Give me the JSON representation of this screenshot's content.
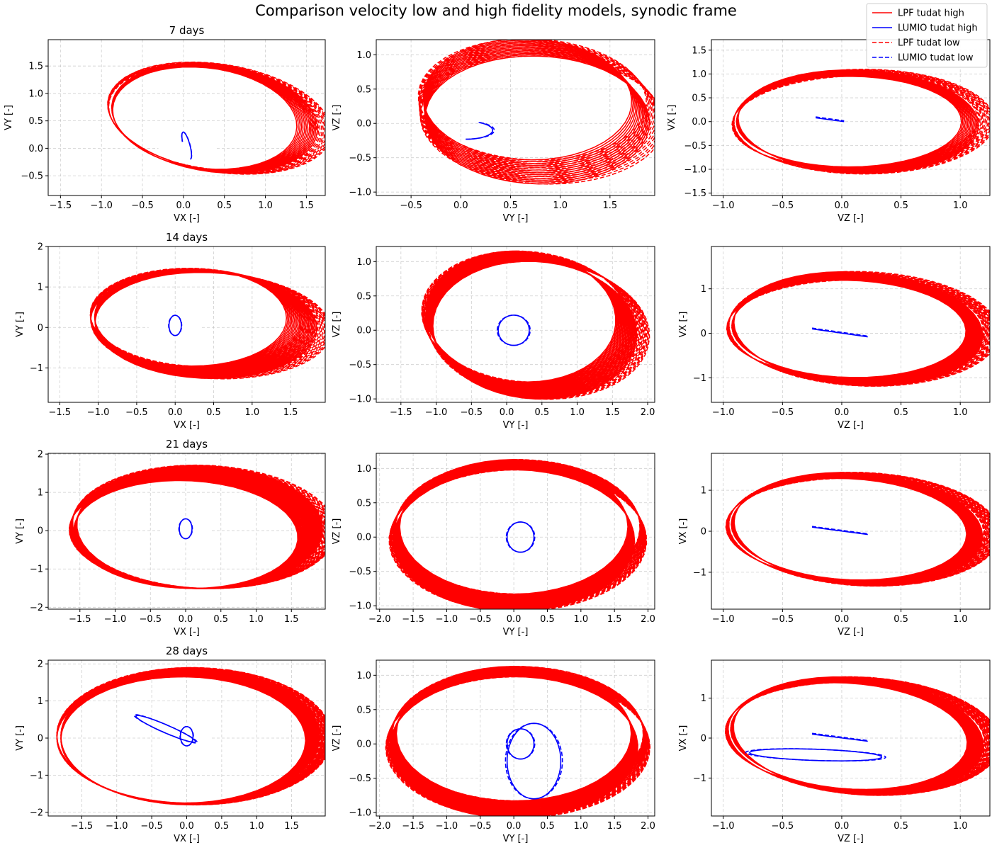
{
  "figure": {
    "title": "Comparison velocity low and high fidelity models, synodic frame"
  },
  "colors": {
    "lpf": "#ff0000",
    "lumio": "#0000ff",
    "grid": "#b0b0b0"
  },
  "legend": {
    "placement": "top-right",
    "entries": [
      {
        "label": "LPF tudat high",
        "series": "lpf",
        "style": "solid"
      },
      {
        "label": "LUMIO tudat high",
        "series": "lumio",
        "style": "solid"
      },
      {
        "label": "LPF tudat low",
        "series": "lpf",
        "style": "dashed"
      },
      {
        "label": "LUMIO tudat low",
        "series": "lumio",
        "style": "dashed"
      }
    ]
  },
  "chart_data": [
    {
      "type": "line",
      "title": "7 days",
      "xlabel": "VX [-]",
      "ylabel": "VY [-]",
      "grid": true,
      "xlim": [
        -1.65,
        1.73
      ],
      "ylim": [
        -0.86,
        1.98
      ],
      "xticks": [
        -1.5,
        -1.0,
        -0.5,
        0.0,
        0.5,
        1.0,
        1.5
      ],
      "xtick_labels": [
        "−1.5",
        "−1.0",
        "−0.5",
        "0.0",
        "0.5",
        "1.0",
        "1.5"
      ],
      "yticks": [
        -0.5,
        0.0,
        0.5,
        1.0,
        1.5
      ],
      "ytick_labels": [
        "−0.5",
        "0.0",
        "0.5",
        "1.0",
        "1.5"
      ],
      "lpf": {
        "cx": 0.32,
        "cy": 0.55,
        "ax": 1.15,
        "ay": 0.9,
        "cx_drift": 0.06,
        "cy_drift": 0.0,
        "ax_drift": 0.14,
        "ay_drift": 0.06,
        "tilt_deg": -20,
        "loops": 14,
        "low_offset": 0.12
      },
      "lumio": {
        "type": "loop",
        "cx": 0.04,
        "cy": 0.05,
        "rx": 0.04,
        "ry": 0.25,
        "tilt_deg": 10,
        "turns": 0.7
      }
    },
    {
      "type": "line",
      "title": "",
      "xlabel": "VY [-]",
      "ylabel": "VZ [-]",
      "grid": true,
      "xlim": [
        -0.85,
        1.95
      ],
      "ylim": [
        -1.05,
        1.22
      ],
      "xticks": [
        -0.5,
        0.0,
        0.5,
        1.0,
        1.5
      ],
      "xtick_labels": [
        "−0.5",
        "0.0",
        "0.5",
        "1.0",
        "1.5"
      ],
      "yticks": [
        -1.0,
        -0.5,
        0.0,
        0.5,
        1.0
      ],
      "ytick_labels": [
        "−1.0",
        "−0.5",
        "0.0",
        "0.5",
        "1.0"
      ],
      "lpf": {
        "cx": 0.72,
        "cy": 0.2,
        "ax": 1.05,
        "ay": 0.88,
        "cx_drift": 0.05,
        "cy_drift": -0.15,
        "ax_drift": 0.08,
        "ay_drift": 0.05,
        "tilt_deg": -6,
        "loops": 14,
        "low_offset": 0.1
      },
      "lumio": {
        "type": "arc",
        "cx": 0.05,
        "cy": -0.1,
        "rx": 0.27,
        "ry": 0.13,
        "tilt_deg": 0,
        "turns": 0.42
      }
    },
    {
      "type": "line",
      "title": "",
      "xlabel": "VZ [-]",
      "ylabel": "VX [-]",
      "grid": true,
      "xlim": [
        -1.1,
        1.25
      ],
      "ylim": [
        -1.55,
        1.72
      ],
      "xticks": [
        -1.0,
        -0.5,
        0.0,
        0.5,
        1.0
      ],
      "xtick_labels": [
        "−1.0",
        "−0.5",
        "0.0",
        "0.5",
        "1.0"
      ],
      "yticks": [
        -1.5,
        -1.0,
        -0.5,
        0.0,
        0.5,
        1.0,
        1.5
      ],
      "ytick_labels": [
        "−1.5",
        "−1.0",
        "−0.5",
        "0.0",
        "0.5",
        "1.0",
        "1.5"
      ],
      "lpf": {
        "cx": 0.1,
        "cy": 0.0,
        "ax": 0.95,
        "ay": 0.95,
        "cx_drift": 0.04,
        "cy_drift": 0.0,
        "ax_drift": 0.05,
        "ay_drift": 0.15,
        "tilt_deg": 22,
        "loops": 14,
        "low_offset": 0.1
      },
      "lumio": {
        "type": "line",
        "x1": -0.22,
        "y1": 0.08,
        "x2": 0.02,
        "y2": 0.0
      }
    },
    {
      "type": "line",
      "title": "14 days",
      "xlabel": "VX [-]",
      "ylabel": "VY [-]",
      "grid": true,
      "xlim": [
        -1.65,
        1.95
      ],
      "ylim": [
        -1.85,
        2.0
      ],
      "xticks": [
        -1.5,
        -1.0,
        -0.5,
        0.0,
        0.5,
        1.0,
        1.5
      ],
      "xtick_labels": [
        "−1.5",
        "−1.0",
        "−0.5",
        "0.0",
        "0.5",
        "1.0",
        "1.5"
      ],
      "yticks": [
        -1,
        0,
        1,
        2
      ],
      "ytick_labels": [
        "−1",
        "0",
        "1",
        "2"
      ],
      "lpf": {
        "cx": 0.3,
        "cy": 0.15,
        "ax": 1.25,
        "ay": 1.2,
        "cx_drift": 0.1,
        "cy_drift": -0.1,
        "ax_drift": 0.2,
        "ay_drift": 0.1,
        "tilt_deg": -15,
        "loops": 24,
        "low_offset": 0.13
      },
      "lumio": {
        "type": "loop",
        "cx": 0.0,
        "cy": 0.05,
        "rx": 0.08,
        "ry": 0.25,
        "tilt_deg": 0,
        "turns": 1
      }
    },
    {
      "type": "line",
      "title": "",
      "xlabel": "VY [-]",
      "ylabel": "VZ [-]",
      "grid": true,
      "xlim": [
        -1.85,
        2.1
      ],
      "ylim": [
        -1.05,
        1.22
      ],
      "xticks": [
        -1.5,
        -1.0,
        -0.5,
        0.0,
        0.5,
        1.0,
        1.5,
        2.0
      ],
      "xtick_labels": [
        "−1.5",
        "−1.0",
        "−0.5",
        "0.0",
        "0.5",
        "1.0",
        "1.5",
        "2.0"
      ],
      "yticks": [
        -1.0,
        -0.5,
        0.0,
        0.5,
        1.0
      ],
      "ytick_labels": [
        "−1.0",
        "−0.5",
        "0.0",
        "0.5",
        "1.0"
      ],
      "lpf": {
        "cx": 0.3,
        "cy": 0.1,
        "ax": 1.35,
        "ay": 0.95,
        "cx_drift": 0.1,
        "cy_drift": -0.1,
        "ax_drift": 0.1,
        "ay_drift": 0.05,
        "tilt_deg": -5,
        "loops": 24,
        "low_offset": 0.12
      },
      "lumio": {
        "type": "loop",
        "cx": 0.1,
        "cy": 0.0,
        "rx": 0.22,
        "ry": 0.22,
        "tilt_deg": 0,
        "turns": 1
      }
    },
    {
      "type": "line",
      "title": "",
      "xlabel": "VZ [-]",
      "ylabel": "VX [-]",
      "grid": true,
      "xlim": [
        -1.1,
        1.25
      ],
      "ylim": [
        -1.55,
        1.95
      ],
      "xticks": [
        -1.0,
        -0.5,
        0.0,
        0.5,
        1.0
      ],
      "xtick_labels": [
        "−1.0",
        "−0.5",
        "0.0",
        "0.5",
        "1.0"
      ],
      "yticks": [
        -1,
        0,
        1
      ],
      "ytick_labels": [
        "−1",
        "0",
        "1"
      ],
      "lpf": {
        "cx": 0.1,
        "cy": 0.1,
        "ax": 0.98,
        "ay": 1.1,
        "cx_drift": 0.04,
        "cy_drift": 0.0,
        "ax_drift": 0.05,
        "ay_drift": 0.2,
        "tilt_deg": 15,
        "loops": 24,
        "low_offset": 0.1
      },
      "lumio": {
        "type": "line",
        "x1": -0.25,
        "y1": 0.1,
        "x2": 0.22,
        "y2": -0.08
      }
    },
    {
      "type": "line",
      "title": "21 days",
      "xlabel": "VX [-]",
      "ylabel": "VY [-]",
      "grid": true,
      "xlim": [
        -1.95,
        1.98
      ],
      "ylim": [
        -2.05,
        2.02
      ],
      "xticks": [
        -1.5,
        -1.0,
        -0.5,
        0.0,
        0.5,
        1.0,
        1.5
      ],
      "xtick_labels": [
        "−1.5",
        "−1.0",
        "−0.5",
        "0.0",
        "0.5",
        "1.0",
        "1.5"
      ],
      "yticks": [
        -2,
        -1,
        0,
        1,
        2
      ],
      "ytick_labels": [
        "−2",
        "−1",
        "0",
        "1",
        "2"
      ],
      "lpf": {
        "cx": 0.1,
        "cy": 0.0,
        "ax": 1.6,
        "ay": 1.4,
        "cx_drift": 0.1,
        "cy_drift": 0.1,
        "ax_drift": 0.15,
        "ay_drift": 0.2,
        "tilt_deg": -12,
        "loops": 32,
        "low_offset": 0.13
      },
      "lumio": {
        "type": "loop",
        "cx": 0.0,
        "cy": 0.05,
        "rx": 0.09,
        "ry": 0.26,
        "tilt_deg": 0,
        "turns": 1
      }
    },
    {
      "type": "line",
      "title": "",
      "xlabel": "VY [-]",
      "ylabel": "VZ [-]",
      "grid": true,
      "xlim": [
        -2.05,
        2.1
      ],
      "ylim": [
        -1.05,
        1.22
      ],
      "xticks": [
        -2.0,
        -1.5,
        -1.0,
        -0.5,
        0.0,
        0.5,
        1.0,
        1.5,
        2.0
      ],
      "xtick_labels": [
        "−2.0",
        "−1.5",
        "−1.0",
        "−0.5",
        "0.0",
        "0.5",
        "1.0",
        "1.5",
        "2.0"
      ],
      "yticks": [
        -1.0,
        -0.5,
        0.0,
        0.5,
        1.0
      ],
      "ytick_labels": [
        "−1.0",
        "−0.5",
        "0.0",
        "0.5",
        "1.0"
      ],
      "lpf": {
        "cx": 0.0,
        "cy": 0.05,
        "ax": 1.7,
        "ay": 0.98,
        "cx_drift": 0.0,
        "cy_drift": -0.1,
        "ax_drift": 0.1,
        "ay_drift": 0.05,
        "tilt_deg": 0,
        "loops": 32,
        "low_offset": 0.12
      },
      "lumio": {
        "type": "loop",
        "cx": 0.1,
        "cy": 0.0,
        "rx": 0.2,
        "ry": 0.22,
        "tilt_deg": 0,
        "turns": 1
      }
    },
    {
      "type": "line",
      "title": "",
      "xlabel": "VZ [-]",
      "ylabel": "VX [-]",
      "grid": true,
      "xlim": [
        -1.1,
        1.25
      ],
      "ylim": [
        -1.9,
        1.9
      ],
      "xticks": [
        -1.0,
        -0.5,
        0.0,
        0.5,
        1.0
      ],
      "xtick_labels": [
        "−1.0",
        "−0.5",
        "0.0",
        "0.5",
        "1.0"
      ],
      "yticks": [
        -1,
        0,
        1
      ],
      "ytick_labels": [
        "−1",
        "0",
        "1"
      ],
      "lpf": {
        "cx": 0.1,
        "cy": 0.05,
        "ax": 0.98,
        "ay": 1.25,
        "cx_drift": 0.04,
        "cy_drift": 0.0,
        "ax_drift": 0.05,
        "ay_drift": 0.15,
        "tilt_deg": 12,
        "loops": 32,
        "low_offset": 0.1
      },
      "lumio": {
        "type": "line",
        "x1": -0.25,
        "y1": 0.1,
        "x2": 0.22,
        "y2": -0.08
      }
    },
    {
      "type": "line",
      "title": "28 days",
      "xlabel": "VX [-]",
      "ylabel": "VY [-]",
      "grid": true,
      "xlim": [
        -1.98,
        1.98
      ],
      "ylim": [
        -2.1,
        2.1
      ],
      "xticks": [
        -1.5,
        -1.0,
        -0.5,
        0.0,
        0.5,
        1.0,
        1.5
      ],
      "xtick_labels": [
        "−1.5",
        "−1.0",
        "−0.5",
        "0.0",
        "0.5",
        "1.0",
        "1.5"
      ],
      "yticks": [
        -2,
        -1,
        0,
        1,
        2
      ],
      "ytick_labels": [
        "−2",
        "−1",
        "0",
        "1",
        "2"
      ],
      "lpf": {
        "cx": 0.0,
        "cy": 0.0,
        "ax": 1.75,
        "ay": 1.7,
        "cx_drift": 0.05,
        "cy_drift": 0.05,
        "ax_drift": 0.1,
        "ay_drift": 0.15,
        "tilt_deg": -8,
        "loops": 40,
        "low_offset": 0.12
      },
      "lumio": {
        "type": "multi",
        "loops": [
          {
            "cx": 0.0,
            "cy": 0.05,
            "rx": 0.09,
            "ry": 0.26,
            "tilt_deg": 0
          },
          {
            "cx": -0.3,
            "cy": 0.25,
            "rx": 0.55,
            "ry": 0.09,
            "tilt_deg": -40
          }
        ]
      }
    },
    {
      "type": "line",
      "title": "",
      "xlabel": "VY [-]",
      "ylabel": "VZ [-]",
      "grid": true,
      "xlim": [
        -2.05,
        2.1
      ],
      "ylim": [
        -1.05,
        1.22
      ],
      "xticks": [
        -2.0,
        -1.5,
        -1.0,
        -0.5,
        0.0,
        0.5,
        1.0,
        1.5,
        2.0
      ],
      "xtick_labels": [
        "−2.0",
        "−1.5",
        "−1.0",
        "−0.5",
        "0.0",
        "0.5",
        "1.0",
        "1.5",
        "2.0"
      ],
      "yticks": [
        -1.0,
        -0.5,
        0.0,
        0.5,
        1.0
      ],
      "ytick_labels": [
        "−1.0",
        "−0.5",
        "0.0",
        "0.5",
        "1.0"
      ],
      "lpf": {
        "cx": 0.0,
        "cy": 0.05,
        "ax": 1.75,
        "ay": 0.98,
        "cx_drift": 0.0,
        "cy_drift": -0.1,
        "ax_drift": 0.1,
        "ay_drift": 0.05,
        "tilt_deg": 0,
        "loops": 40,
        "low_offset": 0.12
      },
      "lumio": {
        "type": "multi",
        "loops": [
          {
            "cx": 0.1,
            "cy": 0.0,
            "rx": 0.2,
            "ry": 0.22,
            "tilt_deg": 0
          },
          {
            "cx": 0.3,
            "cy": -0.25,
            "rx": 0.4,
            "ry": 0.55,
            "tilt_deg": 0
          }
        ]
      }
    },
    {
      "type": "line",
      "title": "",
      "xlabel": "VZ [-]",
      "ylabel": "VX [-]",
      "grid": true,
      "xlim": [
        -1.1,
        1.25
      ],
      "ylim": [
        -1.95,
        1.95
      ],
      "xticks": [
        -1.0,
        -0.5,
        0.0,
        0.5,
        1.0
      ],
      "xtick_labels": [
        "−1.0",
        "−0.5",
        "0.0",
        "0.5",
        "1.0"
      ],
      "yticks": [
        -1,
        0,
        1
      ],
      "ytick_labels": [
        "−1",
        "0",
        "1"
      ],
      "lpf": {
        "cx": 0.1,
        "cy": 0.05,
        "ax": 0.98,
        "ay": 1.35,
        "cx_drift": 0.04,
        "cy_drift": 0.0,
        "ax_drift": 0.05,
        "ay_drift": 0.15,
        "tilt_deg": 12,
        "loops": 40,
        "low_offset": 0.1
      },
      "lumio": {
        "type": "multi",
        "loops": [
          {
            "cx": -0.22,
            "cy": -0.42,
            "rx": 0.56,
            "ry": 0.14,
            "tilt_deg": -6
          }
        ],
        "extra_line": {
          "x1": -0.25,
          "y1": 0.1,
          "x2": 0.22,
          "y2": -0.08
        }
      }
    }
  ]
}
